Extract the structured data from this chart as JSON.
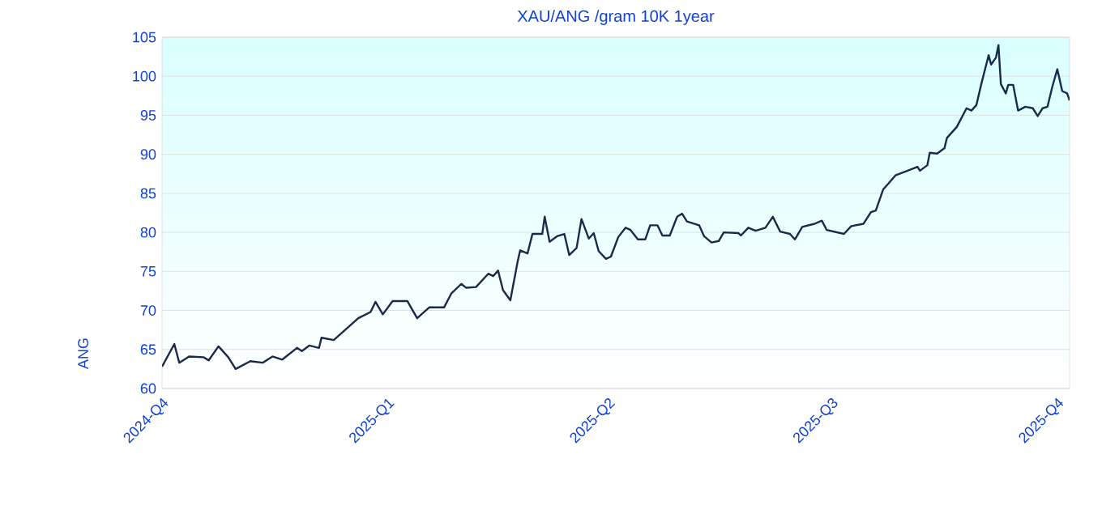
{
  "chart_data": {
    "type": "line",
    "title": "XAU/ANG /gram 10K 1year",
    "ylabel": "ANG",
    "x": [
      "2024-10-01",
      "2024-10-06",
      "2024-10-08",
      "2024-10-12",
      "2024-10-18",
      "2024-10-20",
      "2024-10-24",
      "2024-10-28",
      "2024-10-31",
      "2024-11-06",
      "2024-11-11",
      "2024-11-15",
      "2024-11-19",
      "2024-11-25",
      "2024-11-27",
      "2024-11-30",
      "2024-12-04",
      "2024-12-05",
      "2024-12-10",
      "2024-12-15",
      "2024-12-20",
      "2024-12-25",
      "2024-12-27",
      "2024-12-30",
      "2025-01-03",
      "2025-01-09",
      "2025-01-13",
      "2025-01-18",
      "2025-01-24",
      "2025-01-27",
      "2025-01-31",
      "2025-02-02",
      "2025-02-06",
      "2025-02-11",
      "2025-02-13",
      "2025-02-15",
      "2025-02-17",
      "2025-02-20",
      "2025-02-23",
      "2025-02-24",
      "2025-02-27",
      "2025-03-01",
      "2025-03-05",
      "2025-03-06",
      "2025-03-08",
      "2025-03-11",
      "2025-03-14",
      "2025-03-16",
      "2025-03-19",
      "2025-03-21",
      "2025-03-24",
      "2025-03-26",
      "2025-03-28",
      "2025-03-31",
      "2025-04-02",
      "2025-04-05",
      "2025-04-08",
      "2025-04-10",
      "2025-04-13",
      "2025-04-16",
      "2025-04-18",
      "2025-04-21",
      "2025-04-23",
      "2025-04-26",
      "2025-04-29",
      "2025-05-01",
      "2025-05-03",
      "2025-05-08",
      "2025-05-10",
      "2025-05-13",
      "2025-05-16",
      "2025-05-18",
      "2025-05-24",
      "2025-05-25",
      "2025-05-28",
      "2025-05-31",
      "2025-06-04",
      "2025-06-07",
      "2025-06-10",
      "2025-06-14",
      "2025-06-16",
      "2025-06-19",
      "2025-06-24",
      "2025-06-27",
      "2025-06-29",
      "2025-07-06",
      "2025-07-09",
      "2025-07-14",
      "2025-07-17",
      "2025-07-19",
      "2025-07-22",
      "2025-07-24",
      "2025-07-27",
      "2025-08-01",
      "2025-08-05",
      "2025-08-06",
      "2025-08-09",
      "2025-08-10",
      "2025-08-13",
      "2025-08-16",
      "2025-08-17",
      "2025-08-21",
      "2025-08-25",
      "2025-08-27",
      "2025-08-29",
      "2025-08-31",
      "2025-09-03",
      "2025-09-04",
      "2025-09-06",
      "2025-09-07",
      "2025-09-08",
      "2025-09-10",
      "2025-09-11",
      "2025-09-13",
      "2025-09-15",
      "2025-09-18",
      "2025-09-21",
      "2025-09-23",
      "2025-09-25",
      "2025-09-27",
      "2025-09-29",
      "2025-10-01",
      "2025-10-03",
      "2025-10-05",
      "2025-10-06"
    ],
    "series": [
      {
        "color": "#1a2a4a",
        "values": [
          62.8,
          65.7,
          63.3,
          64.1,
          64.0,
          63.6,
          65.4,
          64.0,
          62.5,
          63.5,
          63.3,
          64.1,
          63.7,
          65.2,
          64.8,
          65.5,
          65.2,
          66.5,
          66.2,
          67.6,
          69.0,
          69.8,
          71.1,
          69.5,
          71.2,
          71.2,
          69.0,
          70.4,
          70.4,
          72.2,
          73.4,
          72.9,
          73.0,
          74.7,
          74.4,
          75.1,
          72.6,
          71.3,
          76.3,
          77.7,
          77.3,
          79.8,
          79.8,
          82.0,
          78.8,
          79.5,
          79.8,
          77.1,
          78.0,
          81.7,
          79.2,
          79.9,
          77.6,
          76.6,
          76.9,
          79.4,
          80.6,
          80.3,
          79.1,
          79.1,
          80.9,
          80.9,
          79.6,
          79.6,
          82.0,
          82.4,
          81.4,
          80.9,
          79.5,
          78.7,
          78.9,
          80.0,
          79.9,
          79.6,
          80.6,
          80.2,
          80.6,
          82.0,
          80.1,
          79.8,
          79.1,
          80.7,
          81.1,
          81.5,
          80.3,
          79.8,
          80.8,
          81.1,
          82.6,
          82.8,
          85.5,
          86.2,
          87.3,
          87.9,
          88.4,
          87.9,
          88.6,
          90.2,
          90.1,
          90.8,
          92.1,
          93.5,
          95.9,
          95.6,
          96.3,
          99.0,
          102.7,
          101.5,
          102.4,
          104.0,
          99.0,
          97.8,
          98.9,
          98.9,
          95.6,
          96.1,
          95.9,
          94.9,
          95.9,
          96.1,
          98.7,
          100.9,
          98.1,
          97.8,
          96.9
        ]
      }
    ],
    "xlim": [
      "2024-10-01",
      "2025-10-06"
    ],
    "xticks": [
      {
        "value": "2024-10-01",
        "label": "2024-Q4"
      },
      {
        "value": "2025-01-01",
        "label": "2025-Q1"
      },
      {
        "value": "2025-04-01",
        "label": "2025-Q2"
      },
      {
        "value": "2025-07-01",
        "label": "2025-Q3"
      },
      {
        "value": "2025-10-01",
        "label": "2025-Q4"
      }
    ],
    "ylim": [
      60,
      105
    ],
    "yticks": [
      60,
      65,
      70,
      75,
      80,
      85,
      90,
      95,
      100,
      105
    ],
    "grid": "y",
    "marker": "none",
    "line_style": "solid"
  }
}
